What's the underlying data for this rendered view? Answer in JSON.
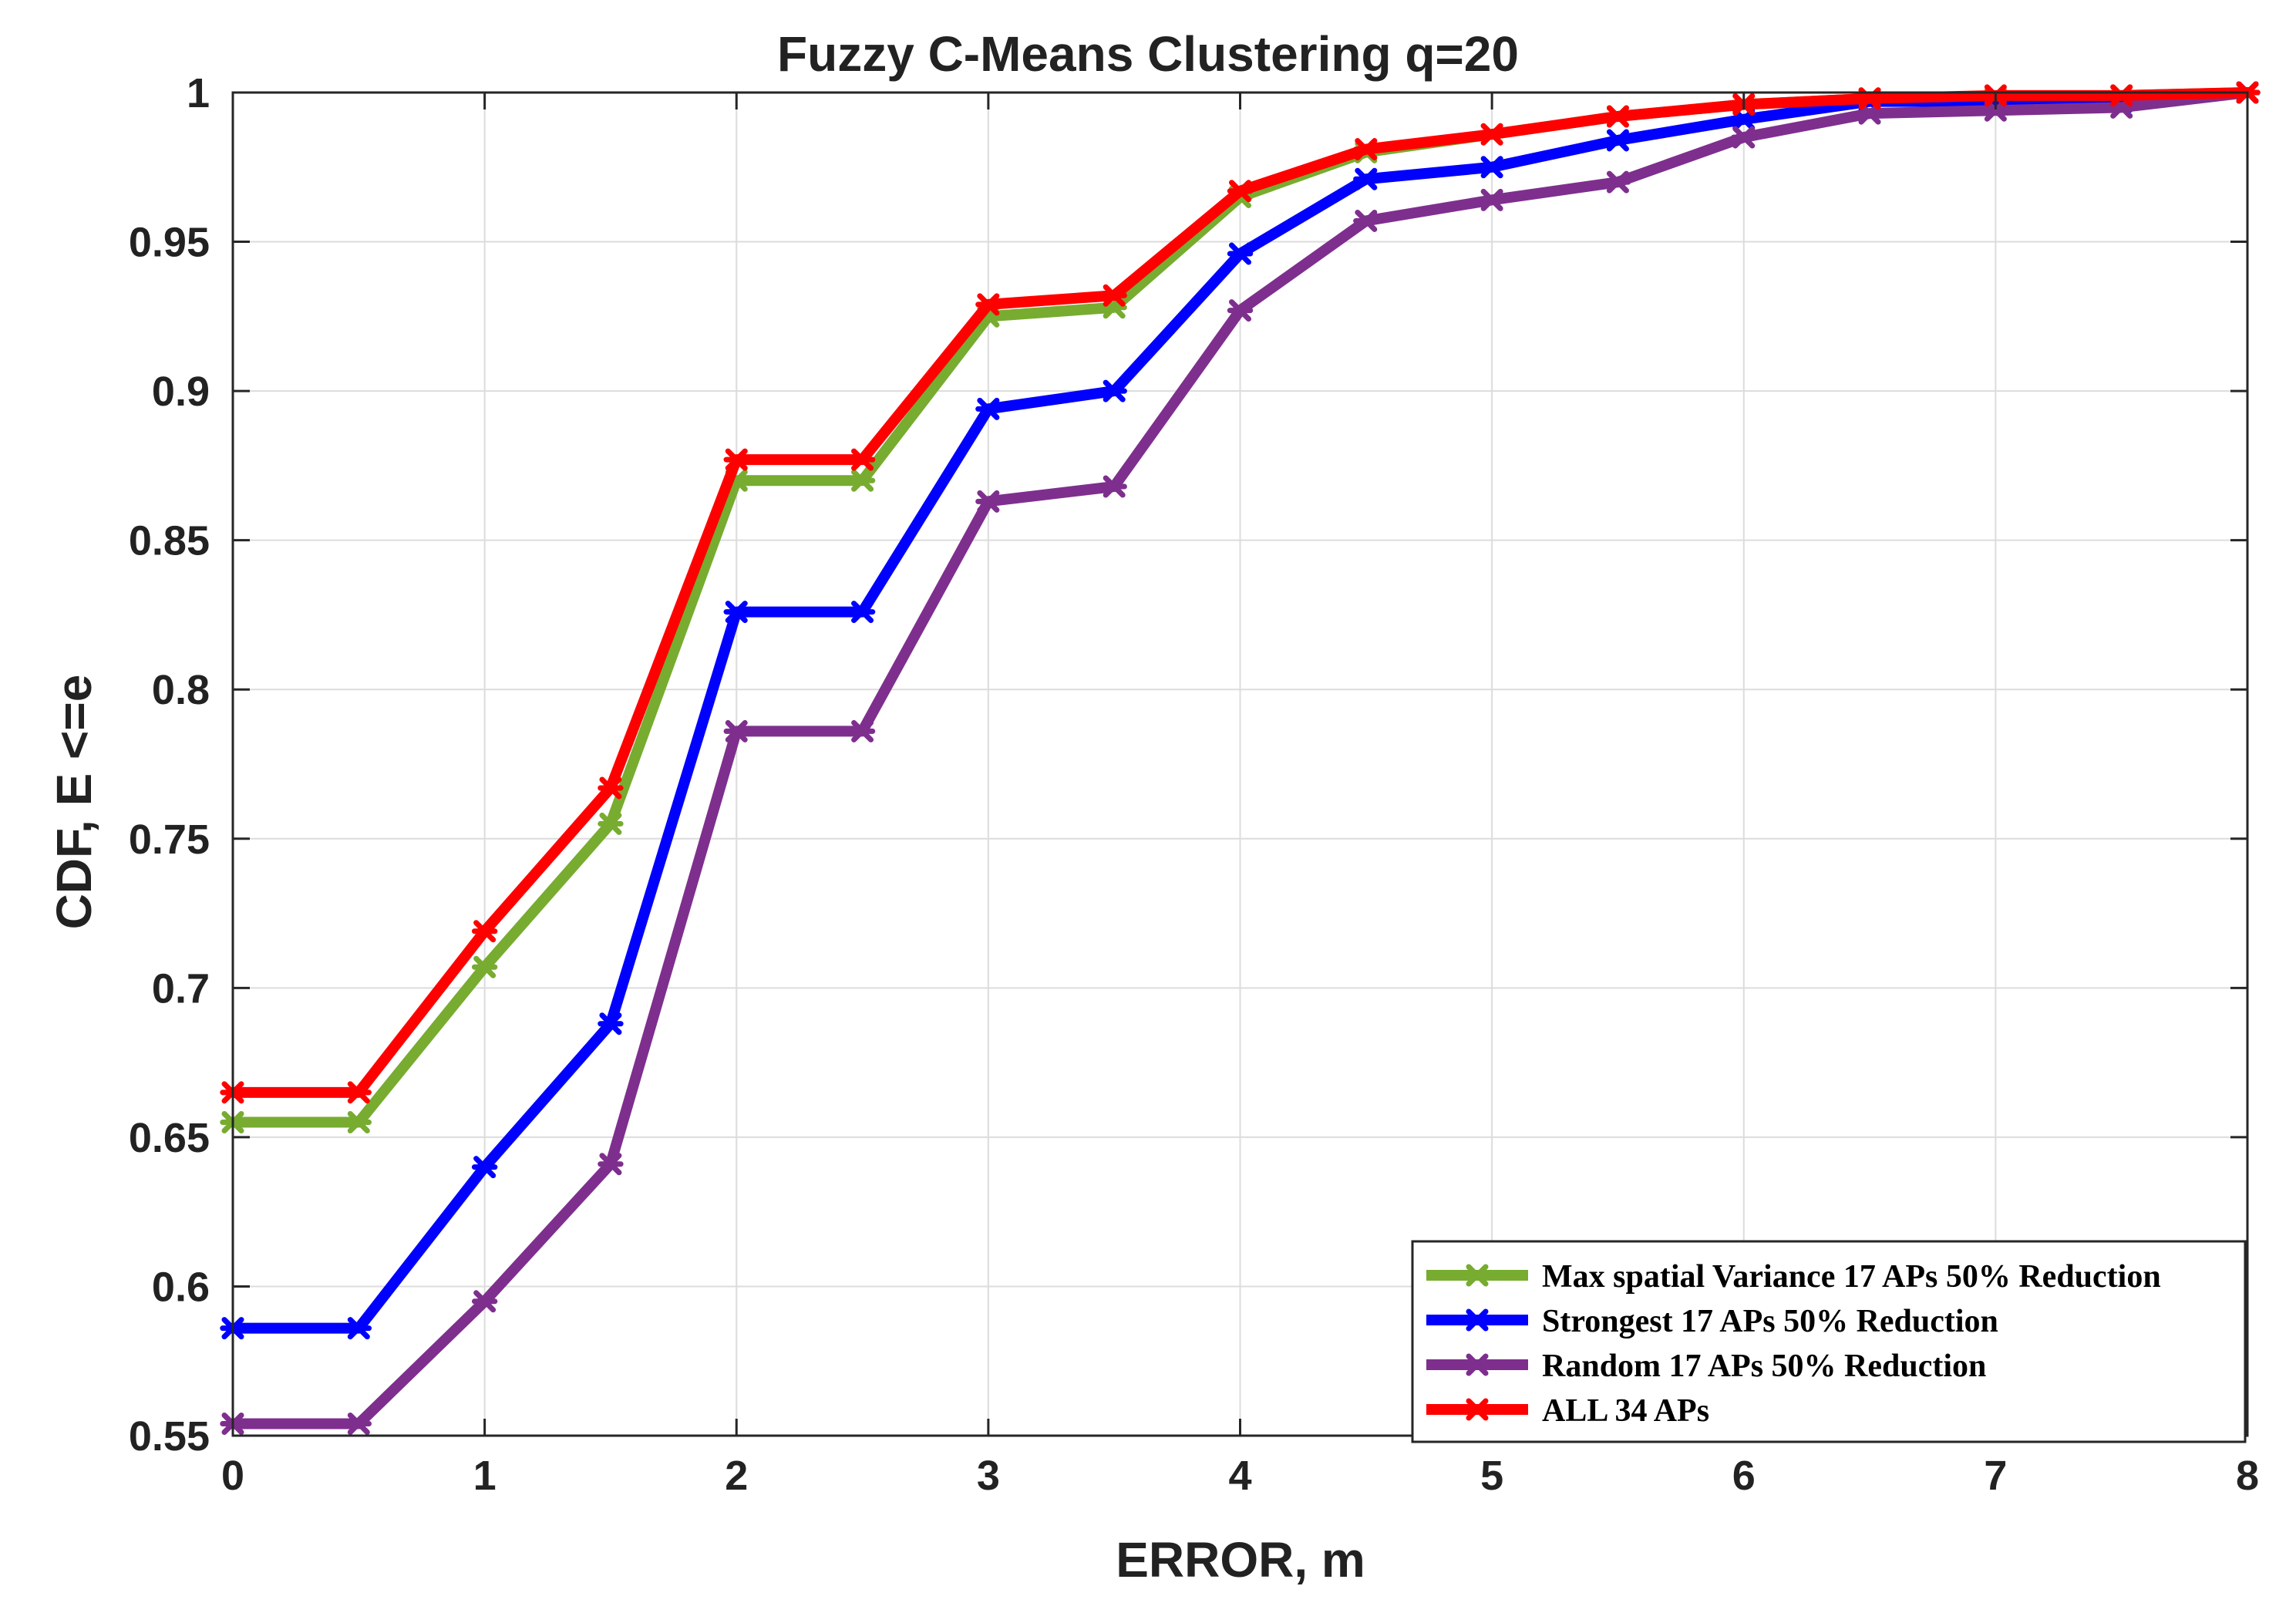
{
  "chart_data": {
    "type": "line",
    "title": "Fuzzy C-Means Clustering q=20",
    "xlabel": "ERROR, m",
    "ylabel": "CDF, E <=e",
    "xlim": [
      0,
      8
    ],
    "ylim": [
      0.55,
      1
    ],
    "grid": true,
    "legend_position": "bottom-right",
    "x_ticks": [
      0,
      1,
      2,
      3,
      4,
      5,
      6,
      7,
      8
    ],
    "x_tick_labels": [
      "0",
      "1",
      "2",
      "3",
      "4",
      "5",
      "6",
      "7",
      "8"
    ],
    "y_ticks": [
      0.55,
      0.6,
      0.65,
      0.7,
      0.75,
      0.8,
      0.85,
      0.9,
      0.95,
      1
    ],
    "y_tick_labels": [
      "0.55",
      "0.6",
      "0.65",
      "0.7",
      "0.75",
      "0.8",
      "0.85",
      "0.9",
      "0.95",
      "1"
    ],
    "x": [
      0,
      0.5,
      1,
      1.5,
      2,
      2.5,
      3,
      3.5,
      4,
      4.5,
      5,
      5.5,
      6,
      6.5,
      7,
      7.5,
      8
    ],
    "series": [
      {
        "name": "Max spatial Variance 17 APs 50% Reduction",
        "color": "#77ac30",
        "values": [
          0.655,
          0.655,
          0.707,
          0.755,
          0.87,
          0.87,
          0.925,
          0.928,
          0.965,
          0.98,
          0.986,
          0.992,
          0.996,
          0.998,
          0.998,
          0.999,
          1.0
        ]
      },
      {
        "name": "Strongest 17 APs 50% Reduction",
        "color": "#0000ff",
        "values": [
          0.586,
          0.586,
          0.64,
          0.688,
          0.826,
          0.826,
          0.894,
          0.9,
          0.946,
          0.971,
          0.975,
          0.984,
          0.991,
          0.997,
          0.997,
          0.997,
          1.0
        ]
      },
      {
        "name": "Random 17 APs 50% Reduction",
        "color": "#7e2f8e",
        "values": [
          0.554,
          0.554,
          0.595,
          0.641,
          0.786,
          0.786,
          0.863,
          0.868,
          0.927,
          0.957,
          0.964,
          0.97,
          0.985,
          0.993,
          0.994,
          0.995,
          1.0
        ]
      },
      {
        "name": "ALL 34 APs",
        "color": "#ff0000",
        "values": [
          0.665,
          0.665,
          0.719,
          0.767,
          0.877,
          0.877,
          0.929,
          0.932,
          0.967,
          0.981,
          0.986,
          0.992,
          0.996,
          0.998,
          0.999,
          0.999,
          1.0
        ]
      }
    ]
  }
}
